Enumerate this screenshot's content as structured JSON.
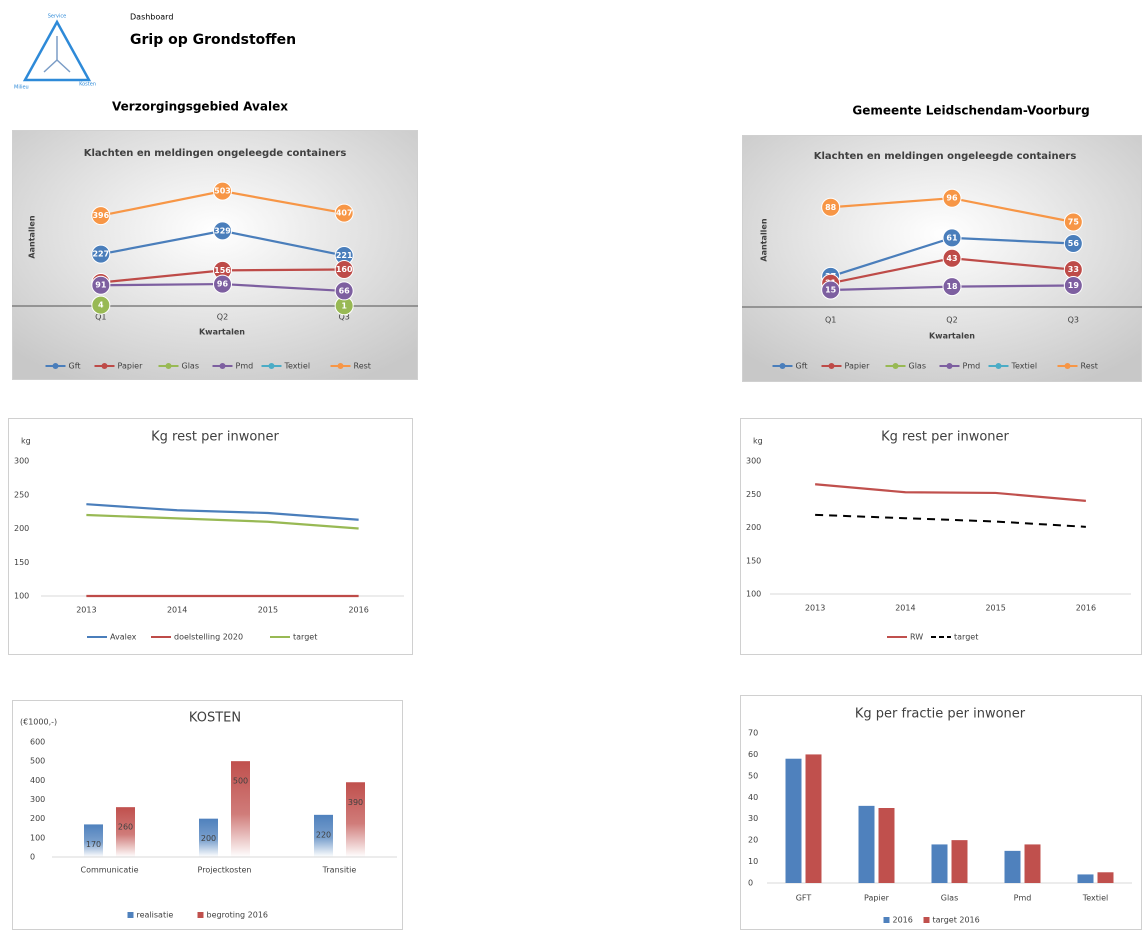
{
  "header": {
    "subtitle": "Dashboard",
    "title": "Grip op Grondstoffen",
    "logo": [
      "Service",
      "Milieu",
      "Kosten"
    ]
  },
  "sections": [
    "Verzorgingsgebied Avalex",
    "Gemeente Leidschendam-Voorburg"
  ],
  "chart_data": [
    {
      "type": "line",
      "title": "Klachten en meldingen ongeleegde containers",
      "y_label": "Aantallen",
      "x_label": "Kwartalen",
      "categories": [
        "Q1",
        "Q2",
        "Q3"
      ],
      "ylim": [
        0,
        600
      ],
      "markers": true,
      "data_labels": true,
      "series": [
        {
          "name": "Gft",
          "color": "#4a7ebb",
          "values": [
            227,
            329,
            221
          ]
        },
        {
          "name": "Papier",
          "color": "#be4b48",
          "values": [
            103,
            156,
            160
          ]
        },
        {
          "name": "Glas",
          "color": "#98b954",
          "values": [
            4,
            null,
            1
          ]
        },
        {
          "name": "Pmd",
          "color": "#7d5fa0",
          "values": [
            91,
            96,
            66
          ]
        },
        {
          "name": "Textiel",
          "color": "#4bacc6",
          "values": [
            null,
            null,
            null
          ]
        },
        {
          "name": "Rest",
          "color": "#f79646",
          "values": [
            396,
            503,
            407
          ]
        }
      ]
    },
    {
      "type": "line",
      "title": "Klachten en meldingen ongeleegde containers",
      "y_label": "Aantallen",
      "x_label": "Kwartalen",
      "categories": [
        "Q1",
        "Q2",
        "Q3"
      ],
      "ylim": [
        0,
        120
      ],
      "markers": true,
      "data_labels": true,
      "series": [
        {
          "name": "Gft",
          "color": "#4a7ebb",
          "values": [
            27,
            61,
            56
          ]
        },
        {
          "name": "Papier",
          "color": "#be4b48",
          "values": [
            21,
            43,
            33
          ]
        },
        {
          "name": "Glas",
          "color": "#98b954",
          "values": [
            null,
            null,
            null
          ]
        },
        {
          "name": "Pmd",
          "color": "#7d5fa0",
          "values": [
            15,
            18,
            19
          ]
        },
        {
          "name": "Textiel",
          "color": "#4bacc6",
          "values": [
            null,
            null,
            null
          ]
        },
        {
          "name": "Rest",
          "color": "#f79646",
          "values": [
            88,
            96,
            75
          ]
        }
      ]
    },
    {
      "type": "line",
      "title": "Kg rest per inwoner",
      "y_label": "kg",
      "categories": [
        "2013",
        "2014",
        "2015",
        "2016"
      ],
      "ylim": [
        100,
        300
      ],
      "yticks": [
        100,
        150,
        200,
        250,
        300
      ],
      "series": [
        {
          "name": "Avalex",
          "color": "#4a7ebb",
          "values": [
            236,
            227,
            223,
            213
          ]
        },
        {
          "name": "doelstelling 2020",
          "color": "#be4b48",
          "values": [
            100,
            100,
            100,
            100
          ]
        },
        {
          "name": "target",
          "color": "#98b954",
          "values": [
            220,
            215,
            210,
            200
          ]
        }
      ]
    },
    {
      "type": "line",
      "title": "Kg rest per inwoner",
      "y_label": "kg",
      "categories": [
        "2013",
        "2014",
        "2015",
        "2016"
      ],
      "ylim": [
        100,
        300
      ],
      "yticks": [
        100,
        150,
        200,
        250,
        300
      ],
      "series": [
        {
          "name": "RW",
          "color": "#c0504d",
          "values": [
            265,
            253,
            252,
            240
          ]
        },
        {
          "name": "target",
          "color": "#000000",
          "dashed": true,
          "values": [
            219,
            214,
            209,
            201
          ]
        }
      ]
    },
    {
      "type": "bar",
      "title": "KOSTEN",
      "y_label": "(€1000,-)",
      "categories": [
        "Communicatie",
        "Projectkosten",
        "Transitie"
      ],
      "ylim": [
        0,
        600
      ],
      "yticks": [
        0,
        100,
        200,
        300,
        400,
        500,
        600
      ],
      "gradient": true,
      "data_labels": true,
      "series": [
        {
          "name": "realisatie",
          "color": "#4f81bd",
          "values": [
            170,
            200,
            220
          ]
        },
        {
          "name": "begroting 2016",
          "color": "#c0504d",
          "values": [
            260,
            500,
            390
          ]
        }
      ]
    },
    {
      "type": "bar",
      "title": "Kg per fractie per inwoner",
      "categories": [
        "GFT",
        "Papier",
        "Glas",
        "Pmd",
        "Textiel"
      ],
      "ylim": [
        0,
        70
      ],
      "yticks": [
        0,
        10,
        20,
        30,
        40,
        50,
        60,
        70
      ],
      "series": [
        {
          "name": "2016",
          "color": "#4f81bd",
          "values": [
            58,
            36,
            18,
            15,
            4
          ]
        },
        {
          "name": "target 2016",
          "color": "#c0504d",
          "values": [
            60,
            35,
            20,
            18,
            5
          ]
        }
      ]
    }
  ]
}
